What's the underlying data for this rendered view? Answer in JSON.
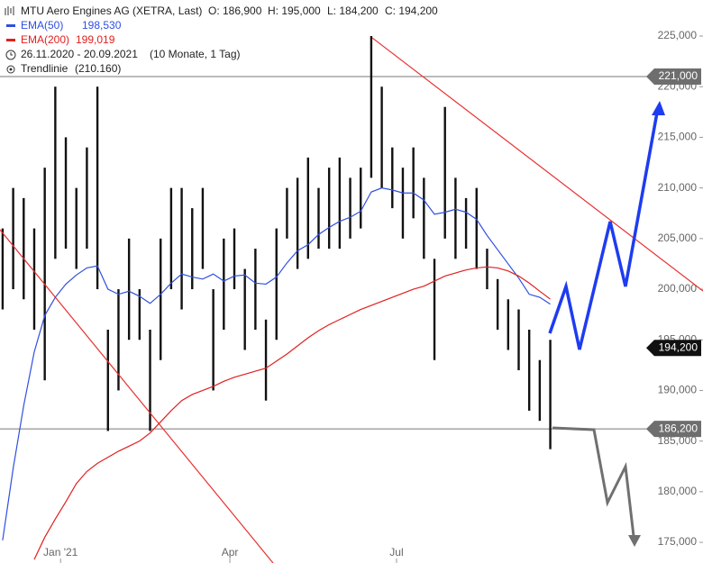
{
  "chart_data": {
    "type": "range-bar",
    "title": "MTU Aero Engines AG (XETRA, Last)",
    "ohlc_labels": [
      "O: 186,900",
      "H: 195,000",
      "L: 184,200",
      "C: 194,200"
    ],
    "period": "26.11.2020 - 20.09.2021",
    "period_note": "(10 Monate, 1 Tag)",
    "trend_label": "Trendlinie",
    "trend_value": "(210.160)",
    "bar_color": "#111111",
    "x": [
      0,
      4,
      8,
      12,
      16,
      20,
      24,
      28,
      32,
      36,
      40,
      44,
      48,
      52,
      56,
      60,
      64,
      68,
      72,
      76,
      80,
      84,
      88,
      92,
      96,
      100,
      104,
      108,
      112,
      116,
      120,
      124,
      128,
      132,
      136,
      140,
      144,
      148,
      152,
      156,
      160,
      164,
      168,
      172,
      176,
      180,
      184,
      188,
      192,
      196,
      200,
      204,
      208
    ],
    "high": [
      206000,
      210000,
      209000,
      206000,
      212000,
      220000,
      215000,
      210000,
      214000,
      220000,
      196000,
      200000,
      205000,
      200000,
      196000,
      205000,
      210000,
      210000,
      208000,
      210000,
      200000,
      205000,
      206000,
      202000,
      204000,
      197000,
      206000,
      210000,
      211000,
      213000,
      210000,
      212000,
      213000,
      211000,
      212000,
      225000,
      220000,
      214000,
      212000,
      214000,
      211000,
      203000,
      218000,
      211000,
      209000,
      210000,
      204000,
      201000,
      199000,
      198000,
      196000,
      193000,
      195000
    ],
    "low": [
      198000,
      200000,
      199000,
      196000,
      191000,
      203000,
      204000,
      202000,
      204000,
      200000,
      186000,
      190000,
      195000,
      195000,
      186000,
      193000,
      200000,
      198000,
      200000,
      202000,
      190000,
      196000,
      200000,
      194000,
      196000,
      189000,
      195000,
      205000,
      202000,
      203000,
      204000,
      204000,
      204000,
      205000,
      206000,
      211000,
      210000,
      208000,
      205000,
      207000,
      203000,
      193000,
      205000,
      203000,
      204000,
      202000,
      200000,
      196000,
      194000,
      192000,
      188000,
      187000,
      184200
    ],
    "series": [
      {
        "name": "EMA(50)",
        "value_label": "198,530",
        "color": "#2f4fe0",
        "values": [
          175200,
          182300,
          188500,
          193800,
          197400,
          199200,
          200500,
          201400,
          202100,
          202300,
          200000,
          199500,
          199800,
          199300,
          198600,
          199500,
          200600,
          201500,
          201200,
          201000,
          201500,
          200800,
          201300,
          201400,
          200600,
          200500,
          201200,
          202600,
          203800,
          204400,
          205400,
          206100,
          206700,
          207100,
          207700,
          209600,
          210000,
          209800,
          209500,
          209500,
          208800,
          207400,
          207600,
          207900,
          207600,
          206900,
          205300,
          203900,
          202500,
          201100,
          199500,
          199200,
          198530
        ]
      },
      {
        "name": "EMA(200)",
        "value_label": "199,019",
        "color": "#e02020",
        "values": [
          null,
          null,
          null,
          173300,
          175500,
          177300,
          179000,
          180800,
          182000,
          182800,
          183400,
          184000,
          184500,
          185000,
          185800,
          186900,
          188000,
          189000,
          189600,
          190000,
          190400,
          190900,
          191300,
          191600,
          191900,
          192200,
          192900,
          193600,
          194400,
          195200,
          195900,
          196500,
          197000,
          197500,
          198000,
          198400,
          198800,
          199200,
          199600,
          200000,
          200300,
          200800,
          201300,
          201600,
          201900,
          202100,
          202200,
          202100,
          201800,
          201300,
          200600,
          199800,
          199019
        ]
      }
    ],
    "trendlines": [
      {
        "color": "#e83030",
        "x": [
          140.4,
          266
        ],
        "y": [
          224820,
          199820
        ]
      },
      {
        "color": "#e83030",
        "x": [
          -1,
          102.7
        ],
        "y": [
          205870,
          172960
        ]
      }
    ],
    "hlines": [
      {
        "value": 221000,
        "label": "221,000"
      },
      {
        "value": 186200,
        "label": "186,200"
      }
    ],
    "last_price": {
      "value": 194200,
      "label": "194,200"
    },
    "xlim": [
      -1,
      266
    ],
    "ylim": [
      172960,
      228560
    ],
    "xticks": [
      {
        "value": 22,
        "label": "Jan '21"
      },
      {
        "value": 86.3,
        "label": "Apr"
      },
      {
        "value": 149.6,
        "label": "Jul"
      }
    ],
    "yticks": [
      {
        "value": 175000,
        "label": "175,000"
      },
      {
        "value": 180000,
        "label": "180,000"
      },
      {
        "value": 185000,
        "label": "185,000"
      },
      {
        "value": 190000,
        "label": "190,000"
      },
      {
        "value": 195000,
        "label": "195,000"
      },
      {
        "value": 200000,
        "label": "200,000"
      },
      {
        "value": 205000,
        "label": "205,000"
      },
      {
        "value": 210000,
        "label": "210,000"
      },
      {
        "value": 215000,
        "label": "215,000"
      },
      {
        "value": 220000,
        "label": "220,000"
      },
      {
        "value": 225000,
        "label": "225,000"
      }
    ]
  }
}
